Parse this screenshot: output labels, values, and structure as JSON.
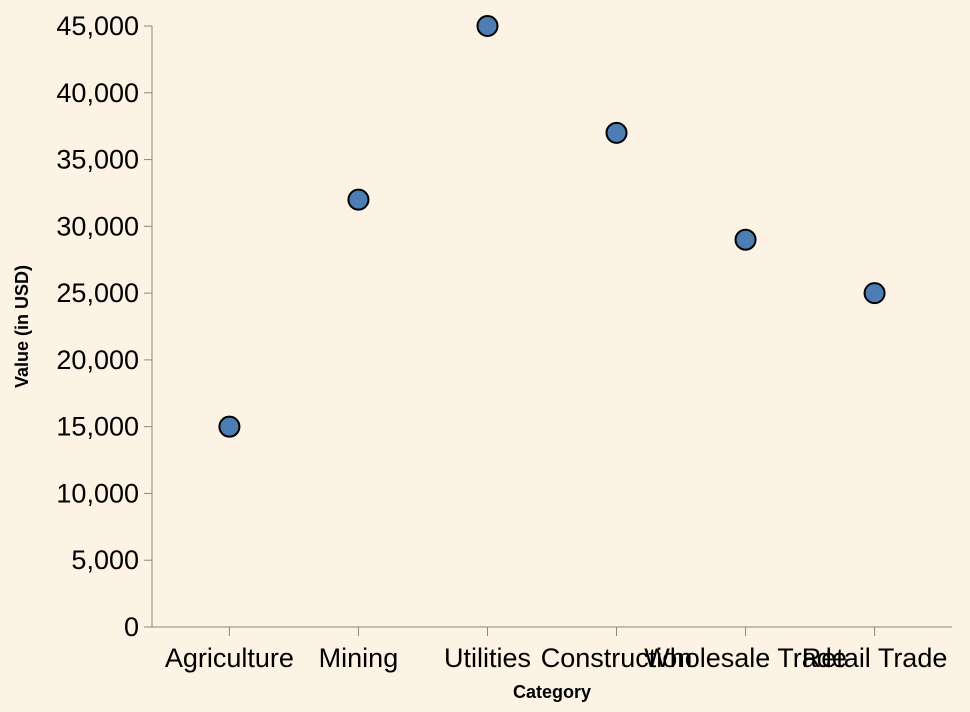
{
  "chart_data": {
    "type": "scatter",
    "categories": [
      "Agriculture",
      "Mining",
      "Utilities",
      "Construction",
      "Wholesale Trade",
      "Retail Trade"
    ],
    "values": [
      15000,
      32000,
      45000,
      37000,
      29000,
      25000
    ],
    "xlabel": "Category",
    "ylabel": "Value (in USD)",
    "ylim": [
      0,
      45000
    ],
    "yticks": [
      0,
      5000,
      10000,
      15000,
      20000,
      25000,
      30000,
      35000,
      40000,
      45000
    ],
    "ytick_labels": [
      "0",
      "5,000",
      "10,000",
      "15,000",
      "20,000",
      "25,000",
      "30,000",
      "35,000",
      "40,000",
      "45,000"
    ],
    "grid": false,
    "colors": {
      "background": "#fdf3e5",
      "point_fill": "#4c7eb3",
      "point_stroke": "#000000",
      "axis": "#888888"
    }
  }
}
